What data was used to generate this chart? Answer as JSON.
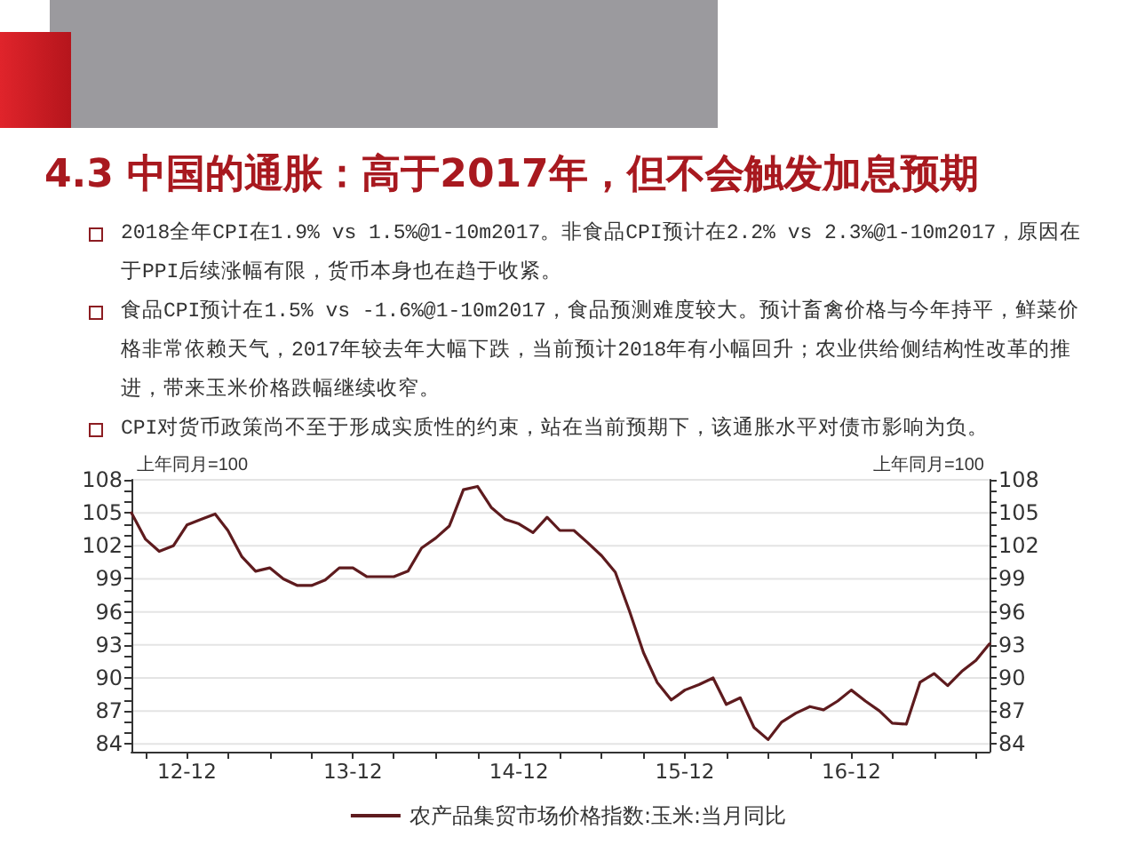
{
  "chart_data": {
    "type": "line",
    "title": "4.3 中国的通胀：高于2017年，但不会触发加息预期",
    "annotations": [
      "2018全年CPI在1.9% vs 1.5%@1-10m2017。非食品CPI预计在2.2% vs 2.3%@1-10m2017，原因在于PPI后续涨幅有限，货币本身也在趋于收紧。",
      "食品CPI预计在1.5% vs -1.6%@1-10m2017，食品预测难度较大。预计畜禽价格与今年持平，鲜菜价格非常依赖天气，2017年较去年大幅下跌，当前预计2018年有小幅回升；农业供给侧结构性改革的推进，带来玉米价格跌幅继续收窄。",
      "CPI对货币政策尚不至于形成实质性的约束，站在当前预期下，该通胀水平对债市影响为负。"
    ],
    "ylabel": "上年同月=100",
    "y2label": "上年同月=100",
    "x": [
      "2012-08",
      "2012-09",
      "2012-10",
      "2012-11",
      "2012-12",
      "2013-01",
      "2013-02",
      "2013-03",
      "2013-04",
      "2013-05",
      "2013-06",
      "2013-07",
      "2013-08",
      "2013-09",
      "2013-10",
      "2013-11",
      "2013-12",
      "2014-01",
      "2014-02",
      "2014-03",
      "2014-04",
      "2014-05",
      "2014-06",
      "2014-07",
      "2014-08",
      "2014-09",
      "2014-10",
      "2014-11",
      "2014-12",
      "2015-01",
      "2015-02",
      "2015-03",
      "2015-04",
      "2015-05",
      "2015-06",
      "2015-07",
      "2015-08",
      "2015-09",
      "2015-10",
      "2015-11",
      "2015-12",
      "2016-01",
      "2016-02",
      "2016-03",
      "2016-04",
      "2016-05",
      "2016-06",
      "2016-07",
      "2016-08",
      "2016-09",
      "2016-10",
      "2016-11",
      "2016-12",
      "2017-01",
      "2017-02",
      "2017-03",
      "2017-04",
      "2017-05",
      "2017-06",
      "2017-07",
      "2017-08",
      "2017-09",
      "2017-10"
    ],
    "xlim": [
      "2012-08",
      "2017-10"
    ],
    "xticks": [
      {
        "value": "2012-09",
        "label": null
      },
      {
        "value": "2012-12",
        "label": "12-12"
      },
      {
        "value": "2013-03",
        "label": null
      },
      {
        "value": "2013-06",
        "label": null
      },
      {
        "value": "2013-09",
        "label": null
      },
      {
        "value": "2013-12",
        "label": "13-12"
      },
      {
        "value": "2014-03",
        "label": null
      },
      {
        "value": "2014-06",
        "label": null
      },
      {
        "value": "2014-09",
        "label": null
      },
      {
        "value": "2014-12",
        "label": "14-12"
      },
      {
        "value": "2015-03",
        "label": null
      },
      {
        "value": "2015-06",
        "label": null
      },
      {
        "value": "2015-09",
        "label": null
      },
      {
        "value": "2015-12",
        "label": "15-12"
      },
      {
        "value": "2016-03",
        "label": null
      },
      {
        "value": "2016-06",
        "label": null
      },
      {
        "value": "2016-09",
        "label": null
      },
      {
        "value": "2016-12",
        "label": "16-12"
      },
      {
        "value": "2017-03",
        "label": null
      },
      {
        "value": "2017-06",
        "label": null
      },
      {
        "value": "2017-09",
        "label": null
      }
    ],
    "ylim": [
      83.3,
      108
    ],
    "yticks": [
      84,
      {
        "value": 85,
        "label": null
      },
      {
        "value": 86,
        "label": null
      },
      87,
      {
        "value": 88,
        "label": null
      },
      {
        "value": 89,
        "label": null
      },
      90,
      {
        "value": 91,
        "label": null
      },
      {
        "value": 92,
        "label": null
      },
      93,
      {
        "value": 94,
        "label": null
      },
      {
        "value": 95,
        "label": null
      },
      96,
      {
        "value": 97,
        "label": null
      },
      {
        "value": 98,
        "label": null
      },
      99,
      {
        "value": 100,
        "label": null
      },
      {
        "value": 101,
        "label": null
      },
      102,
      {
        "value": 103,
        "label": null
      },
      {
        "value": 104,
        "label": null
      },
      105,
      {
        "value": 106,
        "label": null
      },
      {
        "value": 107,
        "label": null
      },
      108
    ],
    "y2lim": [
      83.3,
      108
    ],
    "y2ticks": [
      84,
      {
        "value": 85,
        "label": null
      },
      {
        "value": 86,
        "label": null
      },
      87,
      {
        "value": 88,
        "label": null
      },
      {
        "value": 89,
        "label": null
      },
      90,
      {
        "value": 91,
        "label": null
      },
      {
        "value": 92,
        "label": null
      },
      93,
      {
        "value": 94,
        "label": null
      },
      {
        "value": 95,
        "label": null
      },
      96,
      {
        "value": 97,
        "label": null
      },
      {
        "value": 98,
        "label": null
      },
      99,
      {
        "value": 100,
        "label": null
      },
      {
        "value": 101,
        "label": null
      },
      102,
      {
        "value": 103,
        "label": null
      },
      {
        "value": 104,
        "label": null
      },
      105,
      {
        "value": 106,
        "label": null
      },
      {
        "value": 107,
        "label": null
      },
      108
    ],
    "series": [
      {
        "name": "农产品集贸市场价格指数:玉米:当月同比",
        "color": "#5e1b1e",
        "values": [
          105.0,
          102.6,
          101.5,
          102.0,
          103.9,
          104.4,
          104.9,
          103.4,
          101.0,
          99.7,
          100.0,
          99.0,
          98.4,
          98.4,
          98.9,
          100.0,
          100.0,
          99.2,
          99.2,
          99.2,
          99.7,
          101.8,
          102.7,
          103.8,
          107.1,
          107.4,
          105.5,
          104.4,
          104.0,
          103.2,
          104.6,
          103.4,
          103.4,
          102.3,
          101.1,
          99.6,
          96.1,
          92.3,
          89.6,
          88.0,
          88.9,
          89.4,
          90.0,
          87.6,
          88.2,
          85.5,
          84.4,
          86.0,
          86.8,
          87.4,
          87.1,
          87.9,
          88.9,
          87.9,
          87.0,
          85.9,
          85.8,
          89.6,
          90.4,
          89.3,
          90.6,
          91.6,
          93.1
        ]
      }
    ],
    "grid": "y",
    "legend": "bottom",
    "line_style": "solid"
  }
}
